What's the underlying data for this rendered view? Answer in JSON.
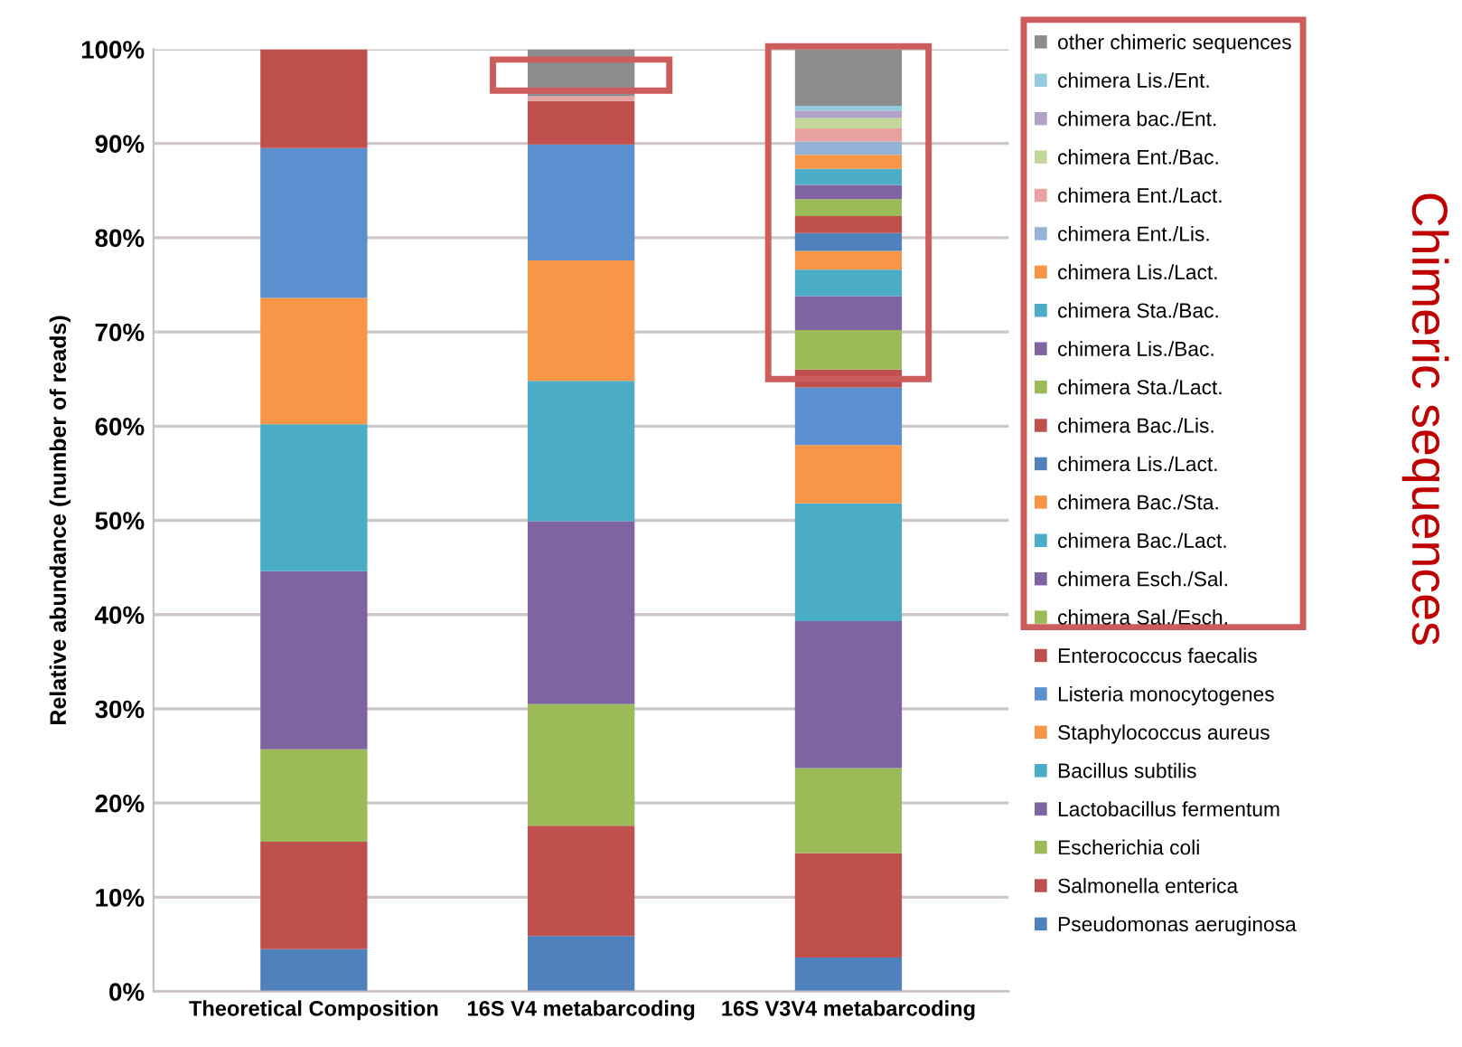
{
  "chart_data": {
    "type": "bar",
    "stacked": true,
    "ylabel": "Relative abundance (number of reads)",
    "categories": [
      "Theoretical Composition",
      "16S V4 metabarcoding",
      "16S V3V4 metabarcoding"
    ],
    "ylim": [
      0,
      100
    ],
    "yticks": [
      {
        "value": 0,
        "label": "0%"
      },
      {
        "value": 10,
        "label": "10%"
      },
      {
        "value": 20,
        "label": "20%"
      },
      {
        "value": 30,
        "label": "30%"
      },
      {
        "value": 40,
        "label": "40%"
      },
      {
        "value": 50,
        "label": "50%"
      },
      {
        "value": 60,
        "label": "60%"
      },
      {
        "value": 70,
        "label": "70%"
      },
      {
        "value": 80,
        "label": "80%"
      },
      {
        "value": 90,
        "label": "90%"
      },
      {
        "value": 100,
        "label": "100%"
      }
    ],
    "grid": "y",
    "legend": "right",
    "annotations": [
      "Chimeric sequences"
    ],
    "series": [
      {
        "name": "Pseudomonas aeruginosa",
        "color": "#4f81bd",
        "values": [
          4.5,
          5.9,
          3.6
        ]
      },
      {
        "name": "Salmonella enterica",
        "color": "#c0504d",
        "values": [
          11.4,
          11.7,
          11.1
        ]
      },
      {
        "name": "Escherichia coli",
        "color": "#9bbb59",
        "values": [
          9.8,
          12.9,
          9.0
        ]
      },
      {
        "name": "Lactobacillus fermentum",
        "color": "#8064a2",
        "values": [
          18.9,
          19.4,
          15.6
        ]
      },
      {
        "name": "Bacillus subtilis",
        "color": "#4bacc6",
        "values": [
          15.6,
          14.9,
          12.5
        ]
      },
      {
        "name": "Staphylococcus aureus",
        "color": "#f79646",
        "values": [
          13.4,
          12.8,
          6.2
        ]
      },
      {
        "name": "Listeria monocytogenes",
        "color": "#5b8fd0",
        "values": [
          15.9,
          12.3,
          6.1
        ]
      },
      {
        "name": "Enterococcus faecalis",
        "color": "#c0504d",
        "values": [
          10.5,
          4.6,
          1.9
        ]
      },
      {
        "name": "chimera Sal./Esch.",
        "color": "#9bbb59",
        "values": [
          0,
          0,
          4.2
        ]
      },
      {
        "name": "chimera Esch./Sal.",
        "color": "#8064a2",
        "values": [
          0,
          0,
          3.6
        ]
      },
      {
        "name": "chimera Bac./Lact.",
        "color": "#4bacc6",
        "values": [
          0,
          0,
          2.8
        ]
      },
      {
        "name": "chimera Bac./Sta.",
        "color": "#f79646",
        "values": [
          0,
          0,
          2.0
        ]
      },
      {
        "name": "chimera Lis./Lact.",
        "color": "#4f81bd",
        "values": [
          0,
          0,
          1.9
        ]
      },
      {
        "name": "chimera Bac./Lis.",
        "color": "#c0504d",
        "values": [
          0,
          0,
          1.8
        ]
      },
      {
        "name": "chimera Sta./Lact.",
        "color": "#9bbb59",
        "values": [
          0,
          0,
          1.8
        ]
      },
      {
        "name": "chimera Lis./Bac.",
        "color": "#8064a2",
        "values": [
          0,
          0,
          1.5
        ]
      },
      {
        "name": "chimera Sta./Bac.",
        "color": "#4bacc6",
        "values": [
          0,
          0,
          1.7
        ]
      },
      {
        "name": "chimera Lis./Lact.",
        "color": "#f79646",
        "values": [
          0,
          0,
          1.5
        ]
      },
      {
        "name": "chimera Ent./Lis.",
        "color": "#95b3d7",
        "values": [
          0,
          0,
          1.4
        ]
      },
      {
        "name": "chimera Ent./Lact.",
        "color": "#e6a1a0",
        "values": [
          0,
          0.5,
          1.4
        ]
      },
      {
        "name": "chimera Ent./Bac.",
        "color": "#c3d69b",
        "values": [
          0,
          0,
          1.1
        ]
      },
      {
        "name": "chimera bac./Ent.",
        "color": "#b3a2c7",
        "values": [
          0,
          0,
          0.8
        ]
      },
      {
        "name": "chimera Lis./Ent.",
        "color": "#93cddd",
        "values": [
          0,
          0,
          0.5
        ]
      },
      {
        "name": "other chimeric sequences",
        "color": "#8c8c8c",
        "values": [
          0,
          5.0,
          6.0
        ]
      }
    ]
  }
}
